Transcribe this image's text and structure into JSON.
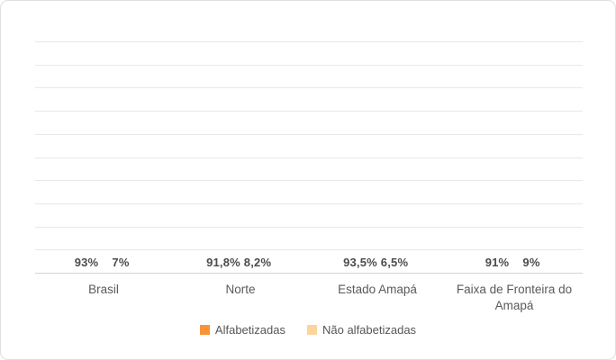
{
  "chart_data": {
    "type": "bar",
    "title": "",
    "xlabel": "",
    "ylabel": "",
    "categories": [
      "Brasil",
      "Norte",
      "Estado Amapá",
      "Faixa de Fronteira do Amapá"
    ],
    "series": [
      {
        "name": "Alfabetizadas",
        "color": "#FA9338",
        "values": [
          93,
          91.8,
          93.5,
          91
        ],
        "labels": [
          "93%",
          "91,8%",
          "93,5%",
          "91%"
        ]
      },
      {
        "name": "Não alfabetizadas",
        "color": "#FCD49C",
        "values": [
          7,
          8.2,
          6.5,
          9
        ],
        "labels": [
          "7%",
          "8,2%",
          "6,5%",
          "9%"
        ]
      }
    ],
    "ylim": [
      0,
      100
    ],
    "gridline_step": 10,
    "grid": true,
    "y_tick_labels_visible": false,
    "legend_position": "bottom"
  },
  "frame": {
    "background": "#ffffff",
    "border_color": "#dedede",
    "gridline_color": "#e8e8e8",
    "baseline_color": "#d4d4d4",
    "label_color": "#4c4c4c"
  }
}
